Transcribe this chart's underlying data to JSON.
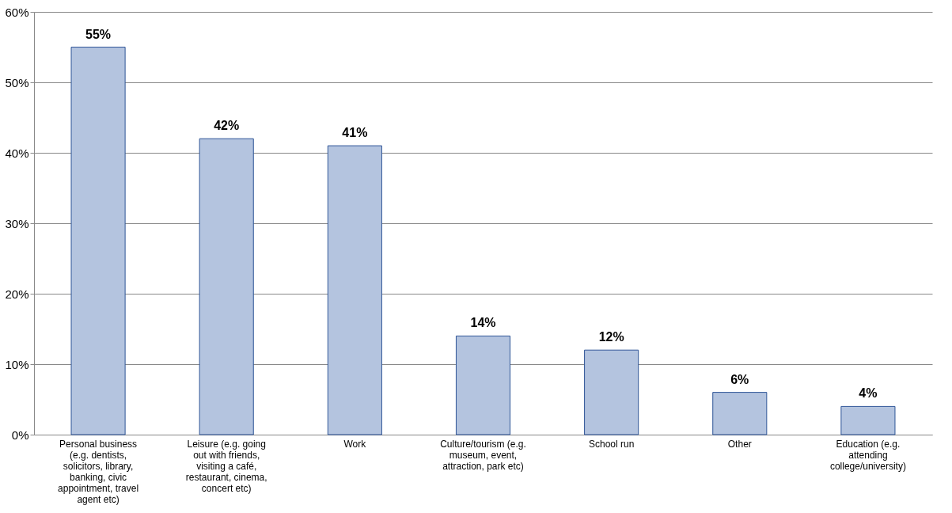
{
  "chart_data": {
    "type": "bar",
    "categories": [
      "Personal business (e.g. dentists, solicitors, library, banking, civic appointment, travel agent etc)",
      "Leisure (e.g. going out with friends, visiting a café, restaurant, cinema, concert etc)",
      "Work",
      "Culture/tourism (e.g. museum, event, attraction, park etc)",
      "School run",
      "Other",
      "Education (e.g. attending college/university)"
    ],
    "values": [
      55,
      42,
      41,
      14,
      12,
      6,
      4
    ],
    "color": "#b4c4df",
    "value_labels": [
      "55%",
      "42%",
      "41%",
      "14%",
      "12%",
      "6%",
      "4%"
    ],
    "ylim": [
      0,
      60
    ],
    "yticks": [
      {
        "value": 0,
        "label": "0%"
      },
      {
        "value": 10,
        "label": "10%"
      },
      {
        "value": 20,
        "label": "20%"
      },
      {
        "value": 30,
        "label": "30%"
      },
      {
        "value": 40,
        "label": "40%"
      },
      {
        "value": 50,
        "label": "50%"
      },
      {
        "value": 60,
        "label": "60%"
      }
    ],
    "grid": "y"
  }
}
